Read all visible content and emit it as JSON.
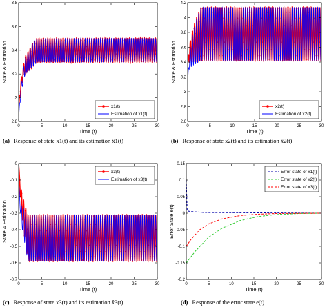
{
  "chart_data": [
    {
      "type": "line",
      "panel": "a",
      "caption_letter": "(a)",
      "caption_text": "Response of state x1(t) and its estimation x̂1(t)",
      "xlabel": "Time (t)",
      "ylabel": "State & Estimation",
      "xlim": [
        0,
        30
      ],
      "ylim": [
        2.8,
        3.8
      ],
      "xticks": [
        "0",
        "5",
        "10",
        "15",
        "20",
        "25",
        "30"
      ],
      "yticks": [
        "2.8",
        "3",
        "3.2",
        "3.4",
        "3.6",
        "3.8"
      ],
      "legend_position": "bottom-right",
      "series": [
        {
          "name": "x1(t)",
          "color": "#ff0000",
          "marker": "circle",
          "x": [
            0,
            0.3,
            1,
            1.5,
            2,
            3,
            4,
            30
          ],
          "center": [
            2.9,
            3.05,
            3.22,
            3.28,
            3.3,
            3.36,
            3.4,
            3.4
          ],
          "amplitude": [
            0,
            0.05,
            0.05,
            0.07,
            0.08,
            0.1,
            0.1,
            0.1
          ]
        },
        {
          "name": "Estimation of x1(t)",
          "color": "#0000ff",
          "marker": "none",
          "x": [
            0,
            0.3,
            1,
            1.5,
            2,
            3,
            4,
            30
          ],
          "center": [
            2.8,
            3.0,
            3.2,
            3.27,
            3.3,
            3.36,
            3.4,
            3.4
          ],
          "amplitude": [
            0,
            0.05,
            0.05,
            0.07,
            0.08,
            0.1,
            0.1,
            0.1
          ]
        }
      ]
    },
    {
      "type": "line",
      "panel": "b",
      "caption_letter": "(b)",
      "caption_text": "Response of state x2(t) and its estimation x̂2(t)",
      "xlabel": "Time (t)",
      "ylabel": "State & Estimation",
      "xlim": [
        0,
        30
      ],
      "ylim": [
        2.6,
        4.2
      ],
      "xticks": [
        "0",
        "5",
        "10",
        "15",
        "20",
        "25",
        "30"
      ],
      "yticks": [
        "2.6",
        "2.8",
        "3",
        "3.2",
        "3.4",
        "3.6",
        "3.8",
        "4",
        "4.2"
      ],
      "legend_position": "bottom-right",
      "series": [
        {
          "name": "x2(t)",
          "color": "#ff0000",
          "marker": "circle",
          "x": [
            0,
            0.3,
            1,
            2,
            3,
            30
          ],
          "center": [
            3.4,
            3.5,
            3.6,
            3.7,
            3.78,
            3.78
          ],
          "amplitude": [
            0,
            0.1,
            0.2,
            0.3,
            0.36,
            0.36
          ]
        },
        {
          "name": "Estimation of x2(t)",
          "color": "#0000ff",
          "marker": "none",
          "x": [
            0,
            0.3,
            1,
            2,
            3,
            30
          ],
          "center": [
            3.1,
            3.4,
            3.55,
            3.68,
            3.78,
            3.78
          ],
          "amplitude": [
            0,
            0.1,
            0.2,
            0.3,
            0.36,
            0.36
          ]
        }
      ]
    },
    {
      "type": "line",
      "panel": "c",
      "caption_letter": "(c)",
      "caption_text": "Response of state x3(t) and its estimation x̂3(t)",
      "xlabel": "Time (t)",
      "ylabel": "State & Estimation",
      "xlim": [
        0,
        30
      ],
      "ylim": [
        -0.7,
        0
      ],
      "xticks": [
        "0",
        "5",
        "10",
        "15",
        "20",
        "25",
        "30"
      ],
      "yticks": [
        "-0.7",
        "-0.6",
        "-0.5",
        "-0.4",
        "-0.3",
        "-0.2",
        "-0.1",
        "0"
      ],
      "legend_position": "top-right",
      "series": [
        {
          "name": "x3(t)",
          "color": "#ff0000",
          "marker": "circle",
          "x": [
            0,
            0.2,
            0.5,
            1,
            2,
            30
          ],
          "center": [
            0,
            -0.1,
            -0.2,
            -0.3,
            -0.45,
            -0.45
          ],
          "amplitude": [
            0,
            0.02,
            0.05,
            0.08,
            0.14,
            0.14
          ]
        },
        {
          "name": "Estimation of x3(t)",
          "color": "#0000ff",
          "marker": "none",
          "x": [
            0,
            0.2,
            0.5,
            1,
            2,
            30
          ],
          "center": [
            -0.1,
            -0.2,
            -0.3,
            -0.35,
            -0.45,
            -0.45
          ],
          "amplitude": [
            0,
            0.02,
            0.05,
            0.08,
            0.14,
            0.14
          ]
        }
      ]
    },
    {
      "type": "line",
      "panel": "d",
      "caption_letter": "(d)",
      "caption_text": "Response of the error state e(t)",
      "xlabel": "Time (t)",
      "ylabel": "Error State e(t)",
      "xlim": [
        0,
        30
      ],
      "ylim": [
        -0.2,
        0.15
      ],
      "xticks": [
        "0",
        "5",
        "10",
        "15",
        "20",
        "25",
        "30"
      ],
      "yticks": [
        "-0.2",
        "-0.15",
        "-0.1",
        "-0.05",
        "0",
        "0.05",
        "0.1",
        "0.15"
      ],
      "legend_position": "top-right",
      "series": [
        {
          "name": "Error state of x1(t)",
          "color": "#0000aa",
          "dash": true,
          "x": [
            0,
            0.2,
            0.5,
            1,
            2,
            4,
            30
          ],
          "y": [
            0.1,
            0.01,
            0.006,
            0.005,
            0.004,
            0.002,
            0
          ]
        },
        {
          "name": "Error state of x2(t)",
          "color": "#33cc33",
          "dash": true,
          "x": [
            0,
            2,
            5,
            8,
            12,
            16,
            20,
            25,
            30
          ],
          "y": [
            -0.15,
            -0.115,
            -0.072,
            -0.045,
            -0.022,
            -0.01,
            -0.004,
            -0.001,
            0
          ]
        },
        {
          "name": "Error state of x3(t)",
          "color": "#ff0000",
          "dash": true,
          "x": [
            0,
            1,
            3,
            5,
            8,
            12,
            16,
            20,
            30
          ],
          "y": [
            -0.1,
            -0.08,
            -0.05,
            -0.032,
            -0.017,
            -0.007,
            -0.003,
            -0.001,
            0
          ]
        }
      ]
    }
  ]
}
